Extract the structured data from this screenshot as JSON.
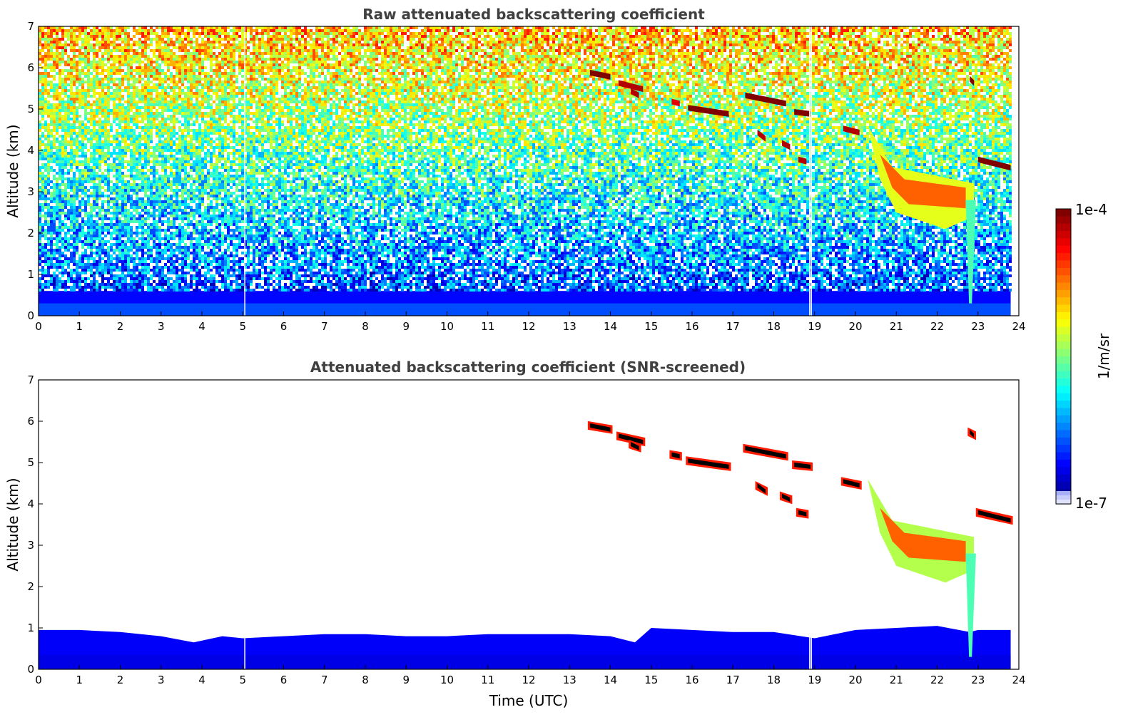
{
  "chart_data": [
    {
      "type": "heatmap",
      "title": "Raw attenuated backscattering coefficient",
      "xlabel": "",
      "ylabel": "Altitude (km)",
      "xlim": [
        0,
        24
      ],
      "ylim": [
        0,
        7
      ],
      "xticks": [
        "0",
        "1",
        "2",
        "3",
        "4",
        "5",
        "6",
        "7",
        "8",
        "9",
        "10",
        "11",
        "12",
        "13",
        "14",
        "15",
        "16",
        "17",
        "18",
        "19",
        "20",
        "21",
        "22",
        "23",
        "24"
      ],
      "yticks": [
        "0",
        "1",
        "2",
        "3",
        "4",
        "5",
        "6",
        "7"
      ],
      "surface_layer_top_km": 0.6,
      "noise": "dense, increasing with altitude",
      "cloud_features": [
        {
          "t0": 13.5,
          "t1": 14.0,
          "alt0": 5.95,
          "alt1": 5.85,
          "level": 1.0
        },
        {
          "t0": 14.2,
          "t1": 14.8,
          "alt0": 5.7,
          "alt1": 5.55,
          "level": 0.95
        },
        {
          "t0": 14.5,
          "t1": 14.7,
          "alt0": 5.5,
          "alt1": 5.4,
          "level": 0.95
        },
        {
          "t0": 15.5,
          "t1": 15.7,
          "alt0": 5.25,
          "alt1": 5.2,
          "level": 0.9
        },
        {
          "t0": 15.9,
          "t1": 16.9,
          "alt0": 5.1,
          "alt1": 4.95,
          "level": 1.0
        },
        {
          "t0": 17.3,
          "t1": 18.3,
          "alt0": 5.4,
          "alt1": 5.2,
          "level": 1.0
        },
        {
          "t0": 18.5,
          "t1": 18.9,
          "alt0": 5.0,
          "alt1": 4.95,
          "level": 1.0
        },
        {
          "t0": 17.6,
          "t1": 17.8,
          "alt0": 4.5,
          "alt1": 4.35,
          "level": 0.95
        },
        {
          "t0": 18.2,
          "t1": 18.4,
          "alt0": 4.25,
          "alt1": 4.15,
          "level": 0.95
        },
        {
          "t0": 18.6,
          "t1": 18.8,
          "alt0": 3.85,
          "alt1": 3.8,
          "level": 0.95
        },
        {
          "t0": 19.7,
          "t1": 20.1,
          "alt0": 4.6,
          "alt1": 4.5,
          "level": 0.95
        },
        {
          "t0": 22.8,
          "t1": 22.9,
          "alt0": 5.8,
          "alt1": 5.7,
          "level": 1.0
        },
        {
          "t0": 23.0,
          "t1": 23.8,
          "alt0": 3.85,
          "alt1": 3.65,
          "level": 1.0
        }
      ],
      "cloud_mass": {
        "t0": 20.3,
        "t1": 22.9,
        "alt_top": 4.5,
        "alt_mean": 3.0,
        "alt_bottom": 2.0,
        "level": 0.78
      },
      "fallstreak": {
        "t0": 22.7,
        "t1": 22.95,
        "alt_top": 2.8,
        "alt_bottom": 0.3,
        "level": 0.45
      },
      "data_gaps_hours": [
        5.05,
        18.88,
        18.92
      ]
    },
    {
      "type": "heatmap",
      "title": "Attenuated backscattering coefficient (SNR-screened)",
      "xlabel": "Time (UTC)",
      "ylabel": "Altitude (km)",
      "xlim": [
        0,
        24
      ],
      "ylim": [
        0,
        7
      ],
      "xticks": [
        "0",
        "1",
        "2",
        "3",
        "4",
        "5",
        "6",
        "7",
        "8",
        "9",
        "10",
        "11",
        "12",
        "13",
        "14",
        "15",
        "16",
        "17",
        "18",
        "19",
        "20",
        "21",
        "22",
        "23",
        "24"
      ],
      "yticks": [
        "0",
        "1",
        "2",
        "3",
        "4",
        "5",
        "6",
        "7"
      ],
      "boundary_layer_top_km": [
        [
          0,
          0.95
        ],
        [
          1,
          0.95
        ],
        [
          2,
          0.9
        ],
        [
          3,
          0.8
        ],
        [
          3.8,
          0.65
        ],
        [
          4.5,
          0.8
        ],
        [
          5,
          0.75
        ],
        [
          6,
          0.8
        ],
        [
          7,
          0.85
        ],
        [
          8,
          0.85
        ],
        [
          9,
          0.8
        ],
        [
          10,
          0.8
        ],
        [
          11,
          0.85
        ],
        [
          12,
          0.85
        ],
        [
          13,
          0.85
        ],
        [
          14,
          0.8
        ],
        [
          14.6,
          0.65
        ],
        [
          15,
          1.0
        ],
        [
          16,
          0.95
        ],
        [
          17,
          0.9
        ],
        [
          18,
          0.9
        ],
        [
          19,
          0.75
        ],
        [
          20,
          0.95
        ],
        [
          21,
          1.0
        ],
        [
          22,
          1.05
        ],
        [
          22.8,
          0.9
        ],
        [
          23,
          0.95
        ],
        [
          23.8,
          0.95
        ]
      ],
      "saturated_color": "#000000"
    }
  ],
  "colorbar": {
    "max_label": "1e-4",
    "min_label": "1e-7",
    "unit_label": "1/m/sr",
    "colormap": "jet",
    "scale": "log"
  }
}
